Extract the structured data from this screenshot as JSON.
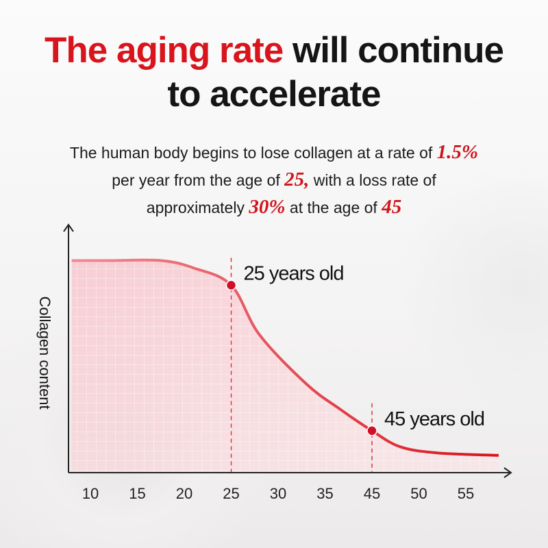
{
  "title": {
    "highlight": "The aging rate",
    "rest_line1": "will continue",
    "line2": "to accelerate",
    "highlight_color": "#d8141c"
  },
  "subtitle": {
    "p1": "The human body begins to lose collagen at a rate of",
    "n1": "1.5%",
    "p2": "per year from the age of",
    "n2": "25,",
    "p3": "with a loss rate of",
    "p4": "approximately",
    "n3": "30%",
    "p5": "at the age of",
    "n4": "45"
  },
  "chart_data": {
    "type": "area",
    "title": "",
    "xlabel": "",
    "ylabel": "Collagen content",
    "x_tick_labels": [
      "10",
      "15",
      "20",
      "25",
      "30",
      "35",
      "45",
      "50",
      "55"
    ],
    "grid": true,
    "line_color": "#e0303c",
    "curve": {
      "x": [
        8,
        12,
        17.5,
        21,
        25,
        28,
        33,
        38,
        45,
        48,
        52,
        58.5
      ],
      "y": [
        86,
        86,
        86,
        83,
        76,
        56,
        36,
        26,
        17,
        10.5,
        8,
        7
      ]
    },
    "annotations": [
      {
        "x": 25,
        "y": 76,
        "label": "25 years old"
      },
      {
        "x": 45,
        "y": 17,
        "label": "45 years old"
      }
    ]
  }
}
